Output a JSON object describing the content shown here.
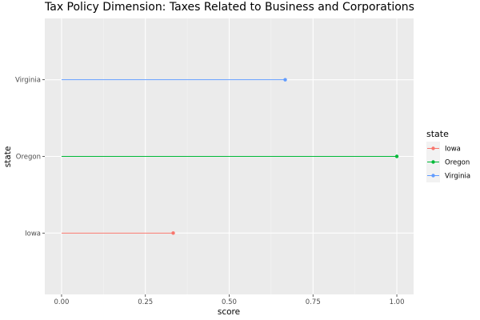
{
  "chart_data": {
    "type": "lollipop",
    "title": "Tax Policy Dimension: Taxes Related to Business and Corporations",
    "xlabel": "score",
    "ylabel": "state",
    "xlim": [
      -0.05,
      1.05
    ],
    "x_ticks": [
      "0.00",
      "0.25",
      "0.50",
      "0.75",
      "1.00"
    ],
    "x_tick_values": [
      0,
      0.25,
      0.5,
      0.75,
      1.0
    ],
    "grid": true,
    "legend": {
      "title": "state",
      "position": "right"
    },
    "series": [
      {
        "name": "Iowa",
        "value": 0.333,
        "color": "#F8766D"
      },
      {
        "name": "Oregon",
        "value": 1.0,
        "color": "#00BA38"
      },
      {
        "name": "Virginia",
        "value": 0.667,
        "color": "#619CFF"
      }
    ]
  }
}
